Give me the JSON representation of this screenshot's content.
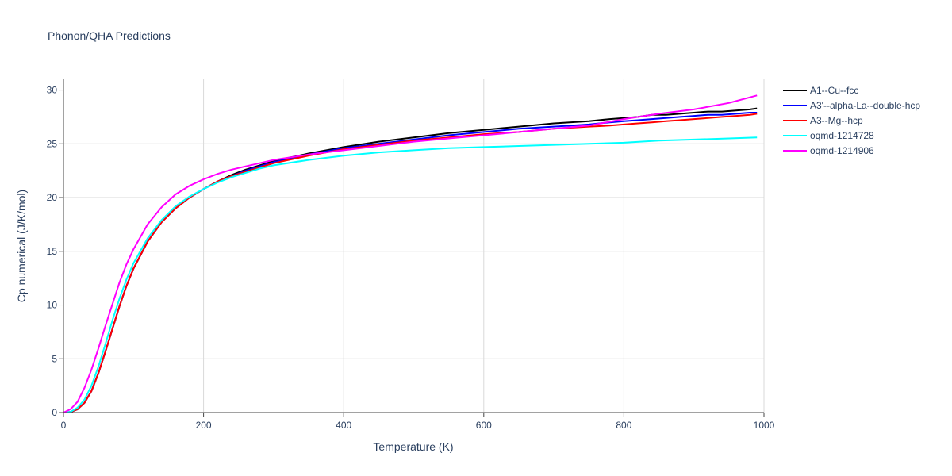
{
  "chart_data": {
    "type": "line",
    "title": "Phonon/QHA Predictions",
    "xlabel": "Temperature (K)",
    "ylabel": "Cp numerical (J/K/mol)",
    "xlim": [
      0,
      1000
    ],
    "ylim": [
      0,
      31
    ],
    "xticks": [
      "0",
      "200",
      "400",
      "600",
      "800",
      "1000"
    ],
    "yticks": [
      "0",
      "5",
      "10",
      "15",
      "20",
      "25",
      "30"
    ],
    "grid": true,
    "legend_position": "top-right",
    "series": [
      {
        "name": "A1--Cu--fcc",
        "color": "#000000",
        "x": [
          0,
          10,
          20,
          30,
          40,
          50,
          60,
          70,
          80,
          90,
          100,
          120,
          140,
          160,
          180,
          200,
          220,
          240,
          260,
          280,
          300,
          350,
          400,
          450,
          500,
          550,
          600,
          650,
          700,
          750,
          780,
          800,
          820,
          840,
          860,
          880,
          900,
          920,
          940,
          960,
          980,
          990
        ],
        "y": [
          0,
          0.05,
          0.3,
          0.9,
          2.0,
          3.7,
          5.7,
          7.8,
          9.9,
          11.8,
          13.4,
          15.9,
          17.7,
          19.0,
          20.0,
          20.8,
          21.5,
          22.1,
          22.6,
          23.0,
          23.4,
          24.1,
          24.7,
          25.2,
          25.6,
          26.0,
          26.3,
          26.6,
          26.9,
          27.1,
          27.3,
          27.4,
          27.5,
          27.7,
          27.7,
          27.8,
          27.9,
          28.0,
          28.0,
          28.1,
          28.2,
          28.3
        ]
      },
      {
        "name": "A3'--alpha-La--double-hcp",
        "color": "#0000ff",
        "x": [
          0,
          10,
          20,
          30,
          40,
          50,
          60,
          70,
          80,
          90,
          100,
          120,
          140,
          160,
          180,
          200,
          220,
          240,
          260,
          280,
          300,
          350,
          400,
          450,
          500,
          550,
          600,
          650,
          700,
          750,
          780,
          800,
          820,
          840,
          860,
          880,
          900,
          920,
          940,
          960,
          980,
          990
        ],
        "y": [
          0,
          0.05,
          0.3,
          0.9,
          2.0,
          3.7,
          5.7,
          7.8,
          9.9,
          11.8,
          13.4,
          15.9,
          17.7,
          19.0,
          20.0,
          20.8,
          21.5,
          22.0,
          22.5,
          22.9,
          23.3,
          24.0,
          24.6,
          25.0,
          25.4,
          25.8,
          26.1,
          26.4,
          26.6,
          26.8,
          27.0,
          27.1,
          27.2,
          27.3,
          27.4,
          27.5,
          27.6,
          27.7,
          27.7,
          27.8,
          27.9,
          27.9
        ]
      },
      {
        "name": "A3--Mg--hcp",
        "color": "#ff0000",
        "x": [
          0,
          10,
          20,
          30,
          40,
          50,
          60,
          70,
          80,
          90,
          100,
          120,
          140,
          160,
          180,
          200,
          220,
          240,
          260,
          280,
          300,
          350,
          400,
          450,
          500,
          550,
          600,
          650,
          700,
          750,
          780,
          800,
          820,
          840,
          860,
          880,
          900,
          920,
          940,
          960,
          980,
          990
        ],
        "y": [
          0,
          0.05,
          0.3,
          0.9,
          2.0,
          3.7,
          5.7,
          7.8,
          9.9,
          11.8,
          13.4,
          15.9,
          17.7,
          19.0,
          20.0,
          20.8,
          21.5,
          22.0,
          22.4,
          22.8,
          23.2,
          23.9,
          24.5,
          24.9,
          25.3,
          25.6,
          25.9,
          26.1,
          26.4,
          26.6,
          26.7,
          26.8,
          26.9,
          27.0,
          27.1,
          27.2,
          27.3,
          27.4,
          27.5,
          27.6,
          27.7,
          27.8
        ]
      },
      {
        "name": "oqmd-1214728",
        "color": "#00ffff",
        "x": [
          0,
          10,
          20,
          30,
          40,
          50,
          60,
          70,
          80,
          90,
          100,
          120,
          140,
          160,
          180,
          200,
          220,
          240,
          260,
          280,
          300,
          350,
          400,
          450,
          500,
          550,
          600,
          650,
          700,
          750,
          800,
          850,
          900,
          950,
          990
        ],
        "y": [
          0,
          0.07,
          0.45,
          1.2,
          2.5,
          4.3,
          6.4,
          8.6,
          10.6,
          12.4,
          13.9,
          16.2,
          17.9,
          19.2,
          20.1,
          20.8,
          21.4,
          21.9,
          22.3,
          22.7,
          23.0,
          23.5,
          23.9,
          24.2,
          24.4,
          24.6,
          24.7,
          24.8,
          24.9,
          25.0,
          25.1,
          25.3,
          25.4,
          25.5,
          25.6
        ]
      },
      {
        "name": "oqmd-1214906",
        "color": "#ff00ff",
        "x": [
          0,
          10,
          20,
          30,
          40,
          50,
          60,
          70,
          80,
          90,
          100,
          120,
          140,
          160,
          180,
          200,
          220,
          240,
          260,
          280,
          300,
          350,
          400,
          450,
          500,
          550,
          600,
          650,
          700,
          750,
          800,
          850,
          900,
          950,
          990
        ],
        "y": [
          0,
          0.3,
          1.0,
          2.3,
          4.0,
          6.0,
          8.1,
          10.1,
          12.1,
          13.8,
          15.2,
          17.5,
          19.1,
          20.3,
          21.1,
          21.7,
          22.2,
          22.6,
          22.9,
          23.2,
          23.5,
          24.0,
          24.4,
          24.8,
          25.2,
          25.5,
          25.8,
          26.1,
          26.4,
          26.7,
          27.3,
          27.8,
          28.2,
          28.8,
          29.5
        ]
      }
    ]
  }
}
